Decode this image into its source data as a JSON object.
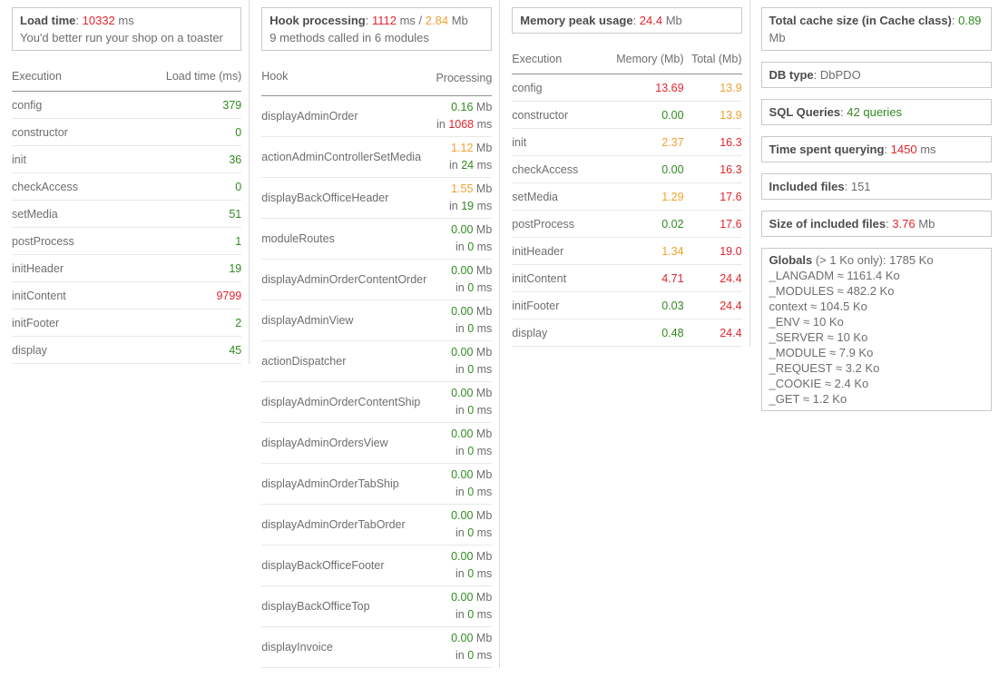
{
  "t": {
    "colon": ": ",
    "ms": " ms",
    "mb": " Mb",
    "slash": " /",
    "in": "in "
  },
  "load_panel": {
    "title": "Load time",
    "value": "10332",
    "value_color": "red",
    "subtitle": "You'd better run your shop on a toaster",
    "headers": {
      "execution": "Execution",
      "load_time": "Load time (ms)"
    },
    "rows": [
      {
        "name": "config",
        "value": "379",
        "color": "green"
      },
      {
        "name": "constructor",
        "value": "0",
        "color": "green"
      },
      {
        "name": "init",
        "value": "36",
        "color": "green"
      },
      {
        "name": "checkAccess",
        "value": "0",
        "color": "green"
      },
      {
        "name": "setMedia",
        "value": "51",
        "color": "green"
      },
      {
        "name": "postProcess",
        "value": "1",
        "color": "green"
      },
      {
        "name": "initHeader",
        "value": "19",
        "color": "green"
      },
      {
        "name": "initContent",
        "value": "9799",
        "color": "red"
      },
      {
        "name": "initFooter",
        "value": "2",
        "color": "green"
      },
      {
        "name": "display",
        "value": "45",
        "color": "green"
      }
    ]
  },
  "hook_panel": {
    "title": "Hook processing",
    "time_value": "1112",
    "time_color": "red",
    "mem_value": "2.84",
    "mem_color": "orange",
    "subtitle": "9 methods called in 6 modules",
    "headers": {
      "hook": "Hook",
      "processing": "Processing"
    },
    "rows": [
      {
        "name": "displayAdminOrder",
        "mem": "0.16",
        "mem_color": "green",
        "time": "1068",
        "time_color": "red"
      },
      {
        "name": "actionAdminControllerSetMedia",
        "mem": "1.12",
        "mem_color": "orange",
        "time": "24",
        "time_color": "green"
      },
      {
        "name": "displayBackOfficeHeader",
        "mem": "1.55",
        "mem_color": "orange",
        "time": "19",
        "time_color": "green"
      },
      {
        "name": "moduleRoutes",
        "mem": "0.00",
        "mem_color": "green",
        "time": "0",
        "time_color": "green"
      },
      {
        "name": "displayAdminOrderContentOrder",
        "mem": "0.00",
        "mem_color": "green",
        "time": "0",
        "time_color": "green"
      },
      {
        "name": "displayAdminView",
        "mem": "0.00",
        "mem_color": "green",
        "time": "0",
        "time_color": "green"
      },
      {
        "name": "actionDispatcher",
        "mem": "0.00",
        "mem_color": "green",
        "time": "0",
        "time_color": "green"
      },
      {
        "name": "displayAdminOrderContentShip",
        "mem": "0.00",
        "mem_color": "green",
        "time": "0",
        "time_color": "green"
      },
      {
        "name": "displayAdminOrdersView",
        "mem": "0.00",
        "mem_color": "green",
        "time": "0",
        "time_color": "green"
      },
      {
        "name": "displayAdminOrderTabShip",
        "mem": "0.00",
        "mem_color": "green",
        "time": "0",
        "time_color": "green"
      },
      {
        "name": "displayAdminOrderTabOrder",
        "mem": "0.00",
        "mem_color": "green",
        "time": "0",
        "time_color": "green"
      },
      {
        "name": "displayBackOfficeFooter",
        "mem": "0.00",
        "mem_color": "green",
        "time": "0",
        "time_color": "green"
      },
      {
        "name": "displayBackOfficeTop",
        "mem": "0.00",
        "mem_color": "green",
        "time": "0",
        "time_color": "green"
      },
      {
        "name": "displayInvoice",
        "mem": "0.00",
        "mem_color": "green",
        "time": "0",
        "time_color": "green"
      }
    ]
  },
  "memory_panel": {
    "title": "Memory peak usage",
    "value": "24.4",
    "value_color": "red",
    "headers": {
      "execution": "Execution",
      "memory": "Memory (Mb)",
      "total": "Total (Mb)"
    },
    "rows": [
      {
        "name": "config",
        "mem": "13.69",
        "mem_color": "red",
        "total": "13.9",
        "total_color": "orange"
      },
      {
        "name": "constructor",
        "mem": "0.00",
        "mem_color": "green",
        "total": "13.9",
        "total_color": "orange"
      },
      {
        "name": "init",
        "mem": "2.37",
        "mem_color": "orange",
        "total": "16.3",
        "total_color": "red"
      },
      {
        "name": "checkAccess",
        "mem": "0.00",
        "mem_color": "green",
        "total": "16.3",
        "total_color": "red"
      },
      {
        "name": "setMedia",
        "mem": "1.29",
        "mem_color": "orange",
        "total": "17.6",
        "total_color": "red"
      },
      {
        "name": "postProcess",
        "mem": "0.02",
        "mem_color": "green",
        "total": "17.6",
        "total_color": "red"
      },
      {
        "name": "initHeader",
        "mem": "1.34",
        "mem_color": "orange",
        "total": "19.0",
        "total_color": "red"
      },
      {
        "name": "initContent",
        "mem": "4.71",
        "mem_color": "red",
        "total": "24.4",
        "total_color": "red"
      },
      {
        "name": "initFooter",
        "mem": "0.03",
        "mem_color": "green",
        "total": "24.4",
        "total_color": "red"
      },
      {
        "name": "display",
        "mem": "0.48",
        "mem_color": "green",
        "total": "24.4",
        "total_color": "red"
      }
    ]
  },
  "stats_panel": {
    "total_cache": {
      "label": "Total cache size (in Cache class)",
      "value": "0.89",
      "color": "green"
    },
    "db_type": {
      "label": "DB type",
      "value": "DbPDO"
    },
    "sql_queries": {
      "label": "SQL Queries",
      "value": "42 queries",
      "color": "green"
    },
    "time_querying": {
      "label": "Time spent querying",
      "value": "1450",
      "color": "red"
    },
    "included_files": {
      "label": "Included files",
      "value": "151"
    },
    "size_included": {
      "label": "Size of included files",
      "value": "3.76",
      "color": "red"
    },
    "globals": {
      "label": "Globals",
      "suffix": "(> 1 Ko only): 1785 Ko",
      "items": [
        {
          "text": "_LANGADM ≈ 1161.4 Ko"
        },
        {
          "text": "_MODULES ≈ 482.2 Ko"
        },
        {
          "text": "context ≈ 104.5 Ko"
        },
        {
          "text": "_ENV ≈ 10 Ko"
        },
        {
          "text": "_SERVER ≈ 10 Ko"
        },
        {
          "text": "_MODULE ≈ 7.9 Ko"
        },
        {
          "text": "_REQUEST ≈ 3.2 Ko"
        },
        {
          "text": "_COOKIE ≈ 2.4 Ko"
        },
        {
          "text": "_GET ≈ 1.2 Ko"
        }
      ]
    }
  }
}
